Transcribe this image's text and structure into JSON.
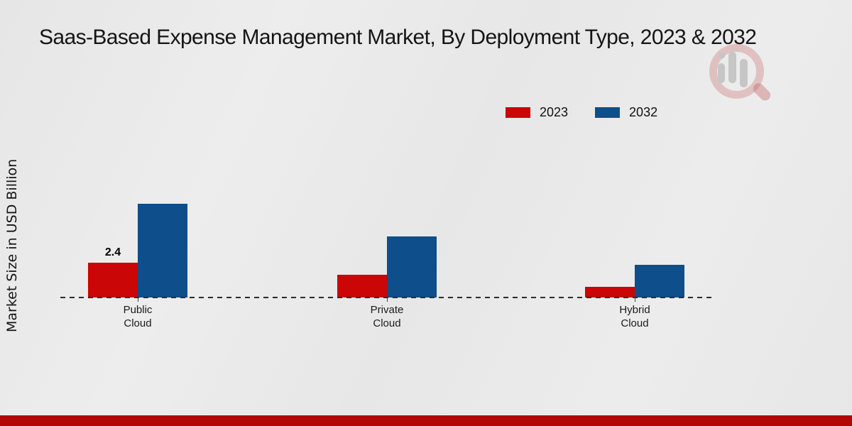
{
  "page": {
    "background_color": "#e9e9e9",
    "footer_band_color": "#b30707"
  },
  "watermark": {
    "icon": "magnifier-bar-chart-logo",
    "glass_color": "#c55d5d",
    "bars_color": "#c6c6c6"
  },
  "chart_data": {
    "type": "bar",
    "title": "Saas-Based Expense Management Market, By Deployment Type, 2023 & 2032",
    "ylabel": "Market Size in USD Billion",
    "xlabel": "",
    "categories": [
      "Public Cloud",
      "Private Cloud",
      "Hybrid Cloud"
    ],
    "series": [
      {
        "name": "2023",
        "color": "#ca0606",
        "values": [
          2.4,
          1.55,
          0.75
        ],
        "data_labels": [
          "2.4",
          null,
          null
        ]
      },
      {
        "name": "2032",
        "color": "#0e4e8b",
        "values": [
          6.45,
          4.2,
          2.25
        ],
        "data_labels": [
          null,
          null,
          null
        ]
      }
    ],
    "ylim": [
      0,
      7
    ],
    "grid": false,
    "y_axis_ticks_visible": false,
    "baseline": {
      "style": "dashed",
      "color": "#2b2b2b"
    },
    "legend_position": "top-right"
  }
}
